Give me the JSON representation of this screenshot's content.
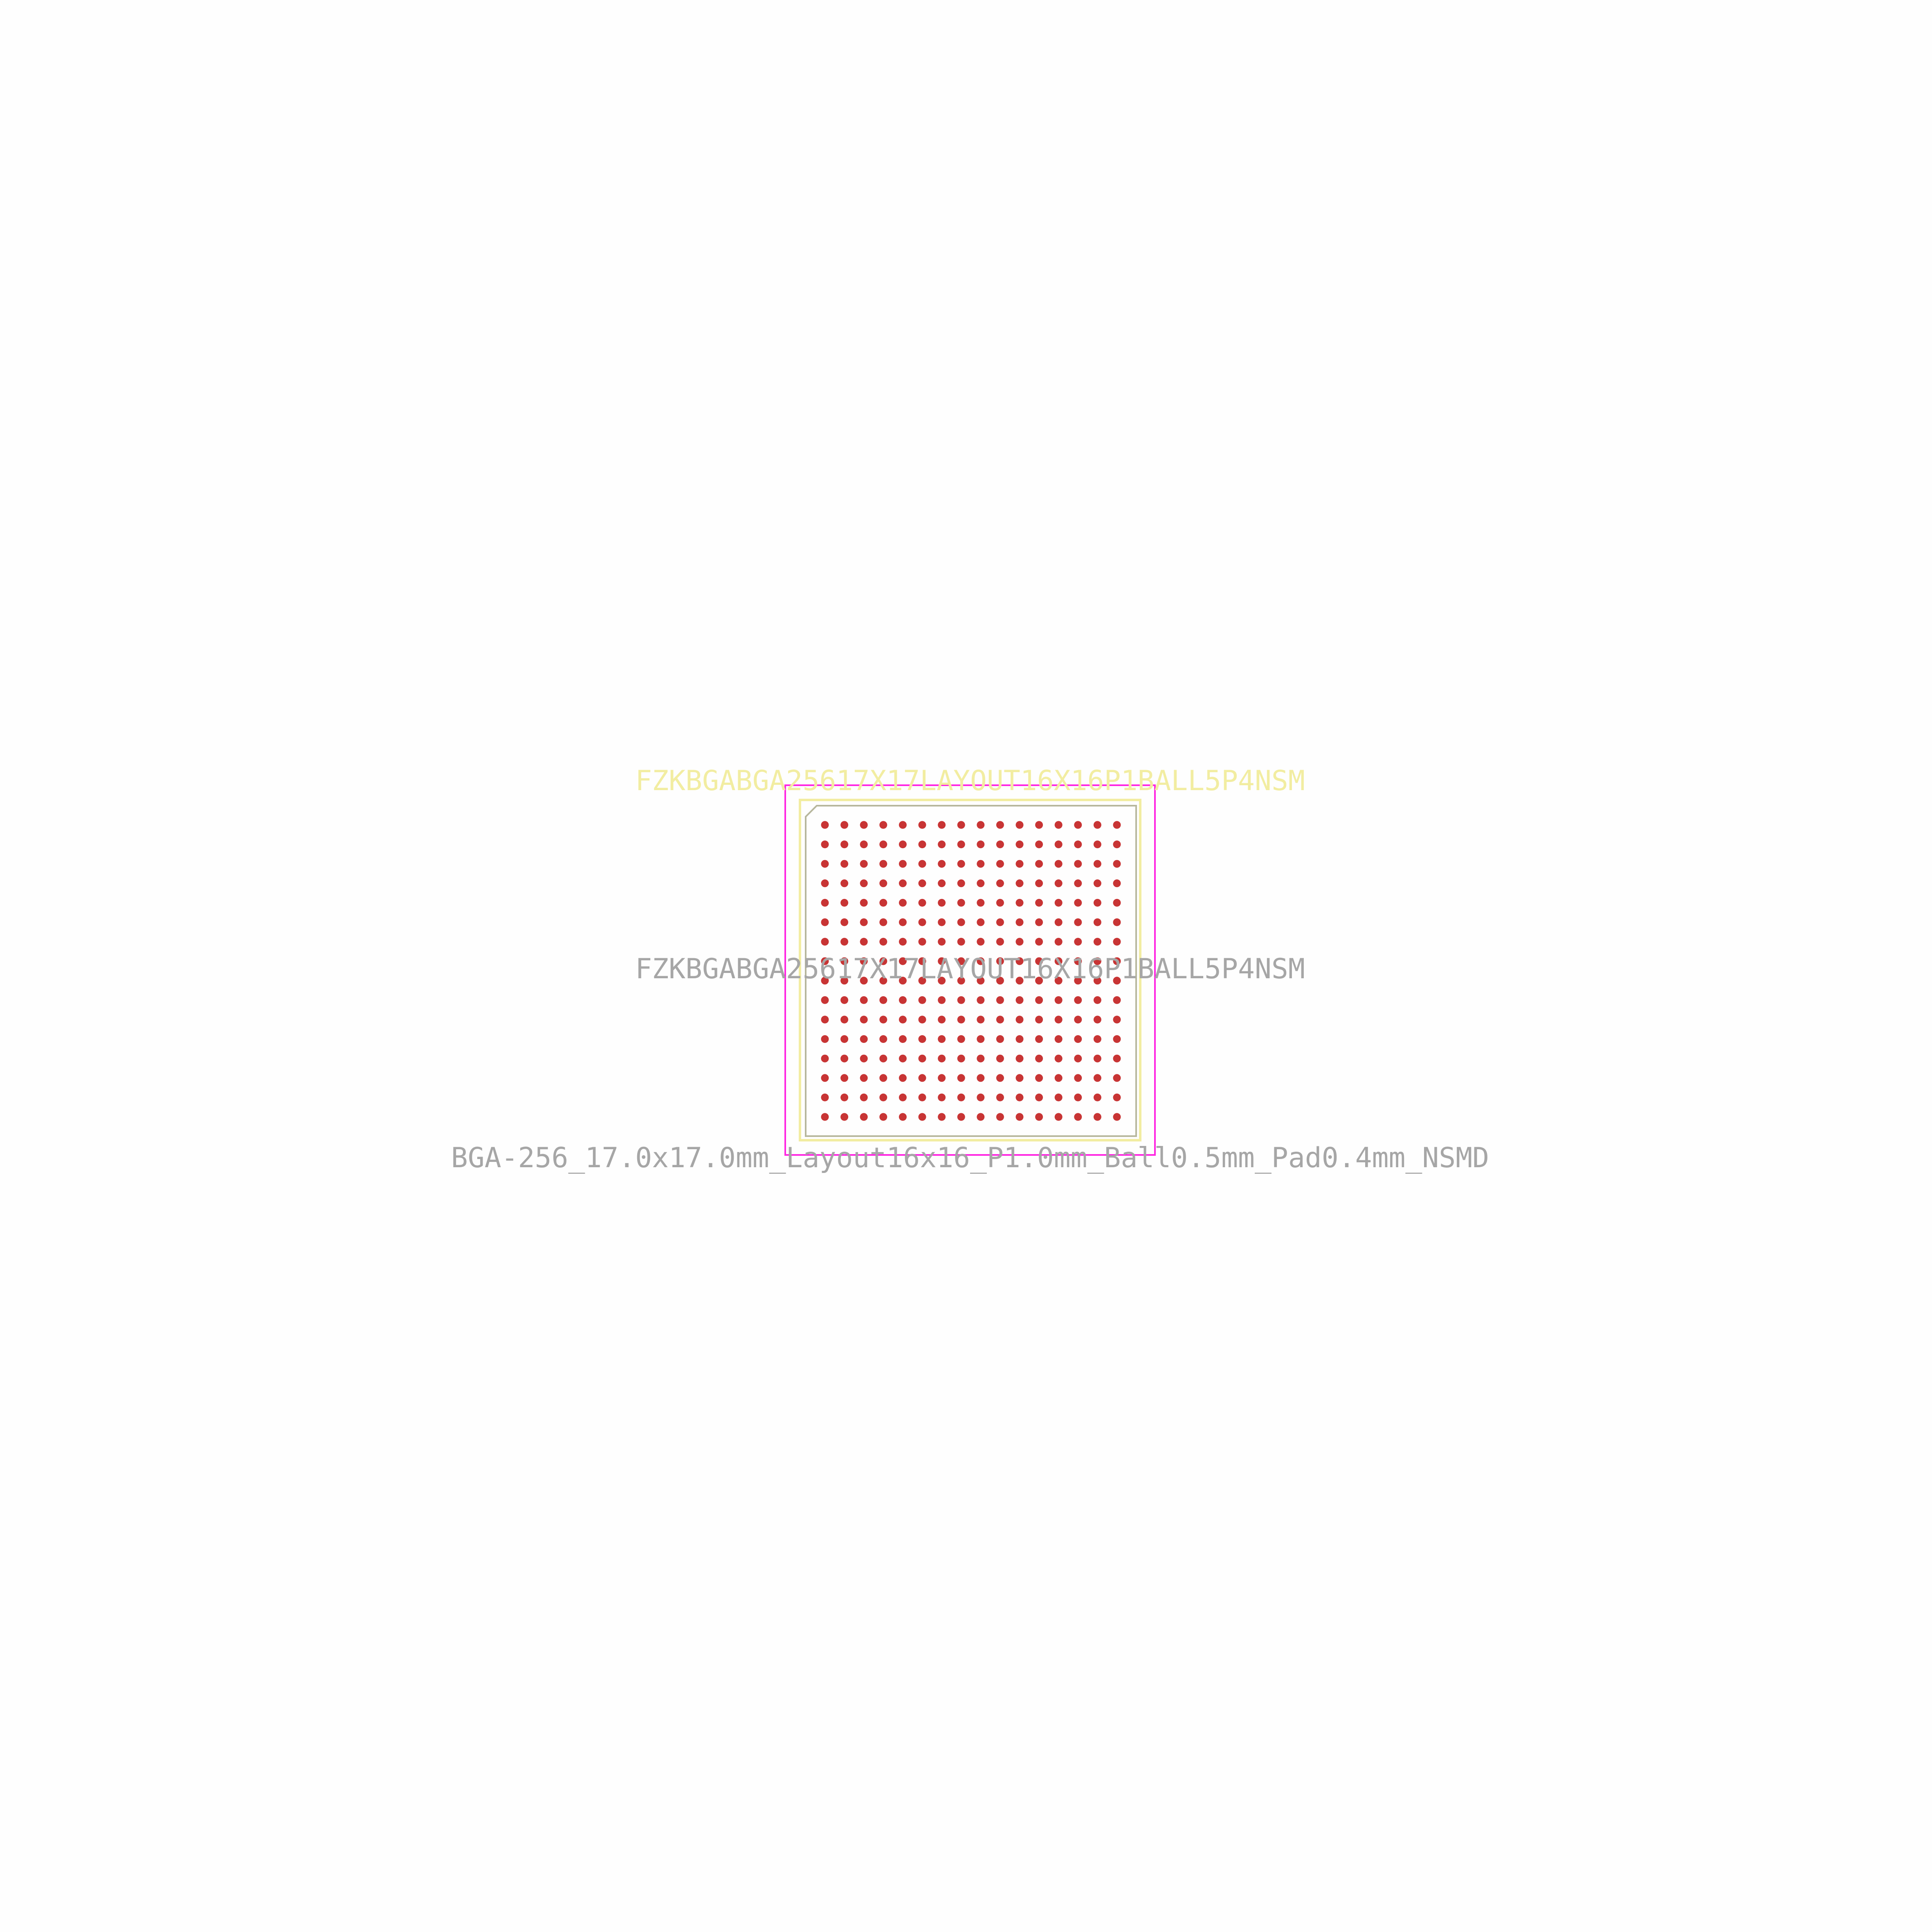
{
  "footprint": {
    "reference_text": "FZKBGABGA25617X17LAYOUT16X16P1BALL5P4NSM",
    "value_text": "FZKBGABGA25617X17LAYOUT16X16P1BALL5P4NSM",
    "footprint_name": "BGA-256_17.0x17.0mm_Layout16x16_P1.0mm_Ball0.5mm_Pad0.4mm_NSMD",
    "ball_rows": 16,
    "ball_columns": 16,
    "colors": {
      "background": "#fefefe",
      "silkscreen": "#f2eda1",
      "fab_text": "#a6a6a6",
      "fab_outline": "#b7b79c",
      "courtyard": "#ff26e2",
      "pads": "#c83434"
    }
  }
}
